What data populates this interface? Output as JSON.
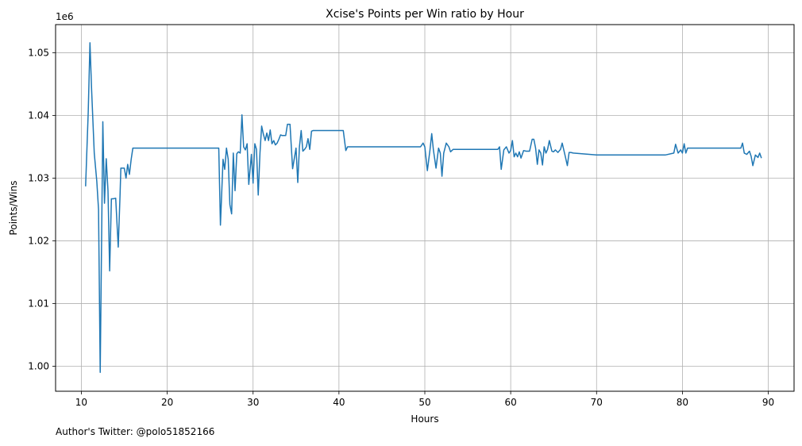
{
  "footer_text": "Author's Twitter: @polo51852166",
  "chart_data": {
    "type": "line",
    "title": "Xcise's Points per Win ratio by Hour",
    "xlabel": "Hours",
    "ylabel": "Points/Wins",
    "y_offset_label": "1e6",
    "xlim": [
      7,
      93
    ],
    "ylim": [
      0.996,
      1.0545
    ],
    "x_ticks": [
      10,
      20,
      30,
      40,
      50,
      60,
      70,
      80,
      90
    ],
    "y_ticks": [
      1.0,
      1.01,
      1.02,
      1.03,
      1.04,
      1.05
    ],
    "y_tick_labels": [
      "1.00",
      "1.01",
      "1.02",
      "1.03",
      "1.04",
      "1.05"
    ],
    "grid": true,
    "line_color": "#1f77b4",
    "series": [
      {
        "x": [
          10.5,
          10.8,
          11.0,
          11.2,
          11.5,
          11.8,
          12.0,
          12.2,
          12.5,
          12.7,
          12.9,
          13.1,
          13.3,
          13.5,
          13.7,
          14.0,
          14.3,
          14.5,
          14.6,
          14.8,
          15.0,
          15.2,
          15.4,
          15.6,
          15.8,
          16.0,
          20.0,
          26.0,
          26.2,
          26.5,
          26.7,
          26.9,
          27.1,
          27.3,
          27.5,
          27.7,
          27.9,
          28.1,
          28.3,
          28.5,
          28.7,
          28.9,
          29.1,
          29.3,
          29.5,
          29.8,
          30.0,
          30.2,
          30.4,
          30.6,
          30.8,
          31.0,
          31.2,
          31.4,
          31.6,
          31.8,
          32.0,
          32.2,
          32.4,
          32.6,
          32.8,
          33.0,
          33.2,
          33.4,
          33.6,
          33.8,
          34.0,
          34.3,
          34.6,
          35.0,
          35.2,
          35.4,
          35.6,
          35.8,
          36.0,
          36.2,
          36.4,
          36.6,
          36.8,
          37.0,
          37.2,
          37.4,
          37.6,
          37.8,
          38.0,
          39.0,
          40.0,
          40.5,
          40.8,
          41.0,
          41.5,
          45.0,
          49.0,
          49.5,
          49.8,
          50.0,
          50.3,
          50.6,
          50.8,
          51.0,
          51.3,
          51.6,
          51.8,
          52.0,
          52.2,
          52.5,
          52.8,
          53.0,
          53.3,
          54.0,
          56.0,
          58.0,
          58.5,
          58.7,
          58.9,
          59.2,
          59.5,
          59.8,
          60.0,
          60.2,
          60.4,
          60.6,
          60.8,
          61.0,
          61.2,
          61.5,
          61.8,
          62.2,
          62.5,
          62.7,
          62.9,
          63.1,
          63.3,
          63.5,
          63.7,
          63.9,
          64.1,
          64.3,
          64.5,
          64.8,
          65.0,
          65.2,
          65.5,
          65.8,
          66.0,
          66.3,
          66.6,
          66.8,
          67.0,
          67.3,
          70.0,
          75.0,
          78.0,
          79.0,
          79.2,
          79.5,
          79.8,
          80.0,
          80.2,
          80.4,
          80.6,
          81.0,
          85.0,
          86.5,
          86.8,
          87.0,
          87.2,
          87.5,
          87.8,
          88.0,
          88.2,
          88.5,
          88.8,
          89.0,
          89.2
        ],
        "y": [
          1.0287,
          1.0405,
          1.0516,
          1.044,
          1.034,
          1.0295,
          1.025,
          0.999,
          1.039,
          1.026,
          1.0331,
          1.028,
          1.0152,
          1.0267,
          1.0267,
          1.0268,
          1.019,
          1.027,
          1.0316,
          1.0316,
          1.0316,
          1.03,
          1.0322,
          1.0306,
          1.033,
          1.0348,
          1.0348,
          1.0348,
          1.0225,
          1.033,
          1.0314,
          1.0348,
          1.033,
          1.0258,
          1.0243,
          1.034,
          1.028,
          1.0339,
          1.0342,
          1.034,
          1.0401,
          1.035,
          1.0345,
          1.0355,
          1.029,
          1.0338,
          1.0292,
          1.0355,
          1.0346,
          1.0273,
          1.034,
          1.0383,
          1.037,
          1.036,
          1.0372,
          1.036,
          1.0377,
          1.0355,
          1.036,
          1.0353,
          1.0356,
          1.0362,
          1.0369,
          1.0368,
          1.0368,
          1.0368,
          1.0386,
          1.0386,
          1.0315,
          1.0348,
          1.0293,
          1.035,
          1.0376,
          1.0343,
          1.0346,
          1.035,
          1.0363,
          1.0346,
          1.0375,
          1.0376,
          1.0376,
          1.0376,
          1.0376,
          1.0376,
          1.0376,
          1.0376,
          1.0376,
          1.0376,
          1.0344,
          1.035,
          1.035,
          1.035,
          1.035,
          1.035,
          1.0356,
          1.035,
          1.0312,
          1.0345,
          1.0371,
          1.0345,
          1.0316,
          1.0348,
          1.034,
          1.0303,
          1.034,
          1.0356,
          1.035,
          1.0342,
          1.0346,
          1.0346,
          1.0346,
          1.0346,
          1.0346,
          1.035,
          1.0314,
          1.0345,
          1.035,
          1.034,
          1.0344,
          1.036,
          1.0334,
          1.034,
          1.0334,
          1.0342,
          1.0332,
          1.0344,
          1.0343,
          1.0343,
          1.0362,
          1.0362,
          1.0348,
          1.0322,
          1.0345,
          1.034,
          1.0321,
          1.035,
          1.034,
          1.0346,
          1.036,
          1.0343,
          1.0342,
          1.0345,
          1.0341,
          1.0346,
          1.0356,
          1.0338,
          1.032,
          1.0341,
          1.0341,
          1.034,
          1.0337,
          1.0337,
          1.0337,
          1.034,
          1.0354,
          1.034,
          1.0345,
          1.034,
          1.0355,
          1.034,
          1.0348,
          1.0348,
          1.0348,
          1.0348,
          1.0348,
          1.0356,
          1.034,
          1.0338,
          1.0343,
          1.0335,
          1.032,
          1.0337,
          1.0333,
          1.034,
          1.0332
        ]
      }
    ]
  }
}
